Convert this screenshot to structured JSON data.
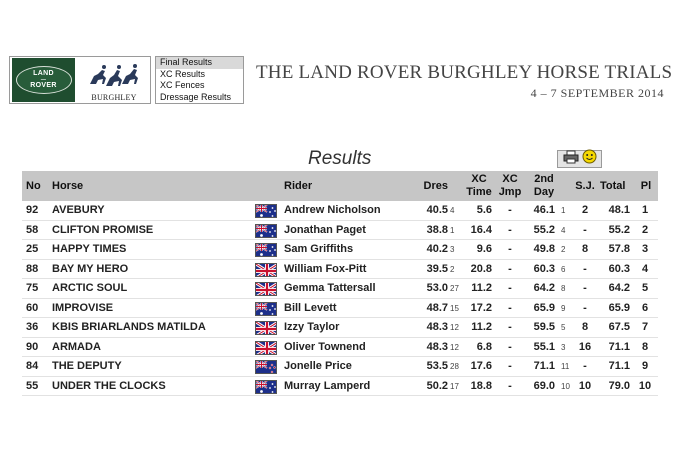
{
  "logos": {
    "land_rover_line1": "LAND",
    "land_rover_line2": "ROVER",
    "burghley": "BURGHLEY"
  },
  "menu": [
    {
      "label": "Final Results",
      "active": true
    },
    {
      "label": "XC Results",
      "active": false
    },
    {
      "label": "XC Fences",
      "active": false
    },
    {
      "label": "Dressage Results",
      "active": false
    }
  ],
  "event": {
    "title": "THE LAND ROVER BURGHLEY HORSE TRIALS",
    "dates": "4 – 7 SEPTEMBER 2014"
  },
  "results_heading": "Results",
  "toolbar_icons": [
    "printer-icon",
    "smiley-icon"
  ],
  "table": {
    "headers": {
      "no": "No",
      "horse": "Horse",
      "rider": "Rider",
      "dres": "Dres",
      "xc_time_1": "XC",
      "xc_time_2": "Time",
      "xc_jmp_1": "XC",
      "xc_jmp_2": "Jmp",
      "second_day_1": "2nd",
      "second_day_2": "Day",
      "sj": "S.J.",
      "total": "Total",
      "pl": "Pl"
    },
    "rows": [
      {
        "no": "92",
        "horse": "AVEBURY",
        "flag": "AUS",
        "rider": "Andrew Nicholson",
        "dres": "40.5",
        "dres_pl": "4",
        "xc_time": "5.6",
        "xc_jmp": "-",
        "d2": "46.1",
        "d2_pl": "1",
        "sj": "2",
        "total": "48.1",
        "pl": "1"
      },
      {
        "no": "58",
        "horse": "CLIFTON PROMISE",
        "flag": "AUS",
        "rider": "Jonathan Paget",
        "dres": "38.8",
        "dres_pl": "1",
        "xc_time": "16.4",
        "xc_jmp": "-",
        "d2": "55.2",
        "d2_pl": "4",
        "sj": "-",
        "total": "55.2",
        "pl": "2"
      },
      {
        "no": "25",
        "horse": "HAPPY TIMES",
        "flag": "AUS",
        "rider": "Sam Griffiths",
        "dres": "40.2",
        "dres_pl": "3",
        "xc_time": "9.6",
        "xc_jmp": "-",
        "d2": "49.8",
        "d2_pl": "2",
        "sj": "8",
        "total": "57.8",
        "pl": "3"
      },
      {
        "no": "88",
        "horse": "BAY MY HERO",
        "flag": "GBR",
        "rider": "William Fox-Pitt",
        "dres": "39.5",
        "dres_pl": "2",
        "xc_time": "20.8",
        "xc_jmp": "-",
        "d2": "60.3",
        "d2_pl": "6",
        "sj": "-",
        "total": "60.3",
        "pl": "4"
      },
      {
        "no": "75",
        "horse": "ARCTIC SOUL",
        "flag": "GBR",
        "rider": "Gemma Tattersall",
        "dres": "53.0",
        "dres_pl": "27",
        "xc_time": "11.2",
        "xc_jmp": "-",
        "d2": "64.2",
        "d2_pl": "8",
        "sj": "-",
        "total": "64.2",
        "pl": "5"
      },
      {
        "no": "60",
        "horse": "IMPROVISE",
        "flag": "AUS",
        "rider": "Bill Levett",
        "dres": "48.7",
        "dres_pl": "15",
        "xc_time": "17.2",
        "xc_jmp": "-",
        "d2": "65.9",
        "d2_pl": "9",
        "sj": "-",
        "total": "65.9",
        "pl": "6"
      },
      {
        "no": "36",
        "horse": "KBIS BRIARLANDS MATILDA",
        "flag": "GBR",
        "rider": "Izzy Taylor",
        "dres": "48.3",
        "dres_pl": "12",
        "xc_time": "11.2",
        "xc_jmp": "-",
        "d2": "59.5",
        "d2_pl": "5",
        "sj": "8",
        "total": "67.5",
        "pl": "7"
      },
      {
        "no": "90",
        "horse": "ARMADA",
        "flag": "GBR",
        "rider": "Oliver Townend",
        "dres": "48.3",
        "dres_pl": "12",
        "xc_time": "6.8",
        "xc_jmp": "-",
        "d2": "55.1",
        "d2_pl": "3",
        "sj": "16",
        "total": "71.1",
        "pl": "8"
      },
      {
        "no": "84",
        "horse": "THE DEPUTY",
        "flag": "NZL",
        "rider": "Jonelle Price",
        "dres": "53.5",
        "dres_pl": "28",
        "xc_time": "17.6",
        "xc_jmp": "-",
        "d2": "71.1",
        "d2_pl": "11",
        "sj": "-",
        "total": "71.1",
        "pl": "9"
      },
      {
        "no": "55",
        "horse": "UNDER THE CLOCKS",
        "flag": "AUS",
        "rider": "Murray Lamperd",
        "dres": "50.2",
        "dres_pl": "17",
        "xc_time": "18.8",
        "xc_jmp": "-",
        "d2": "69.0",
        "d2_pl": "10",
        "sj": "10",
        "total": "79.0",
        "pl": "10"
      }
    ]
  }
}
